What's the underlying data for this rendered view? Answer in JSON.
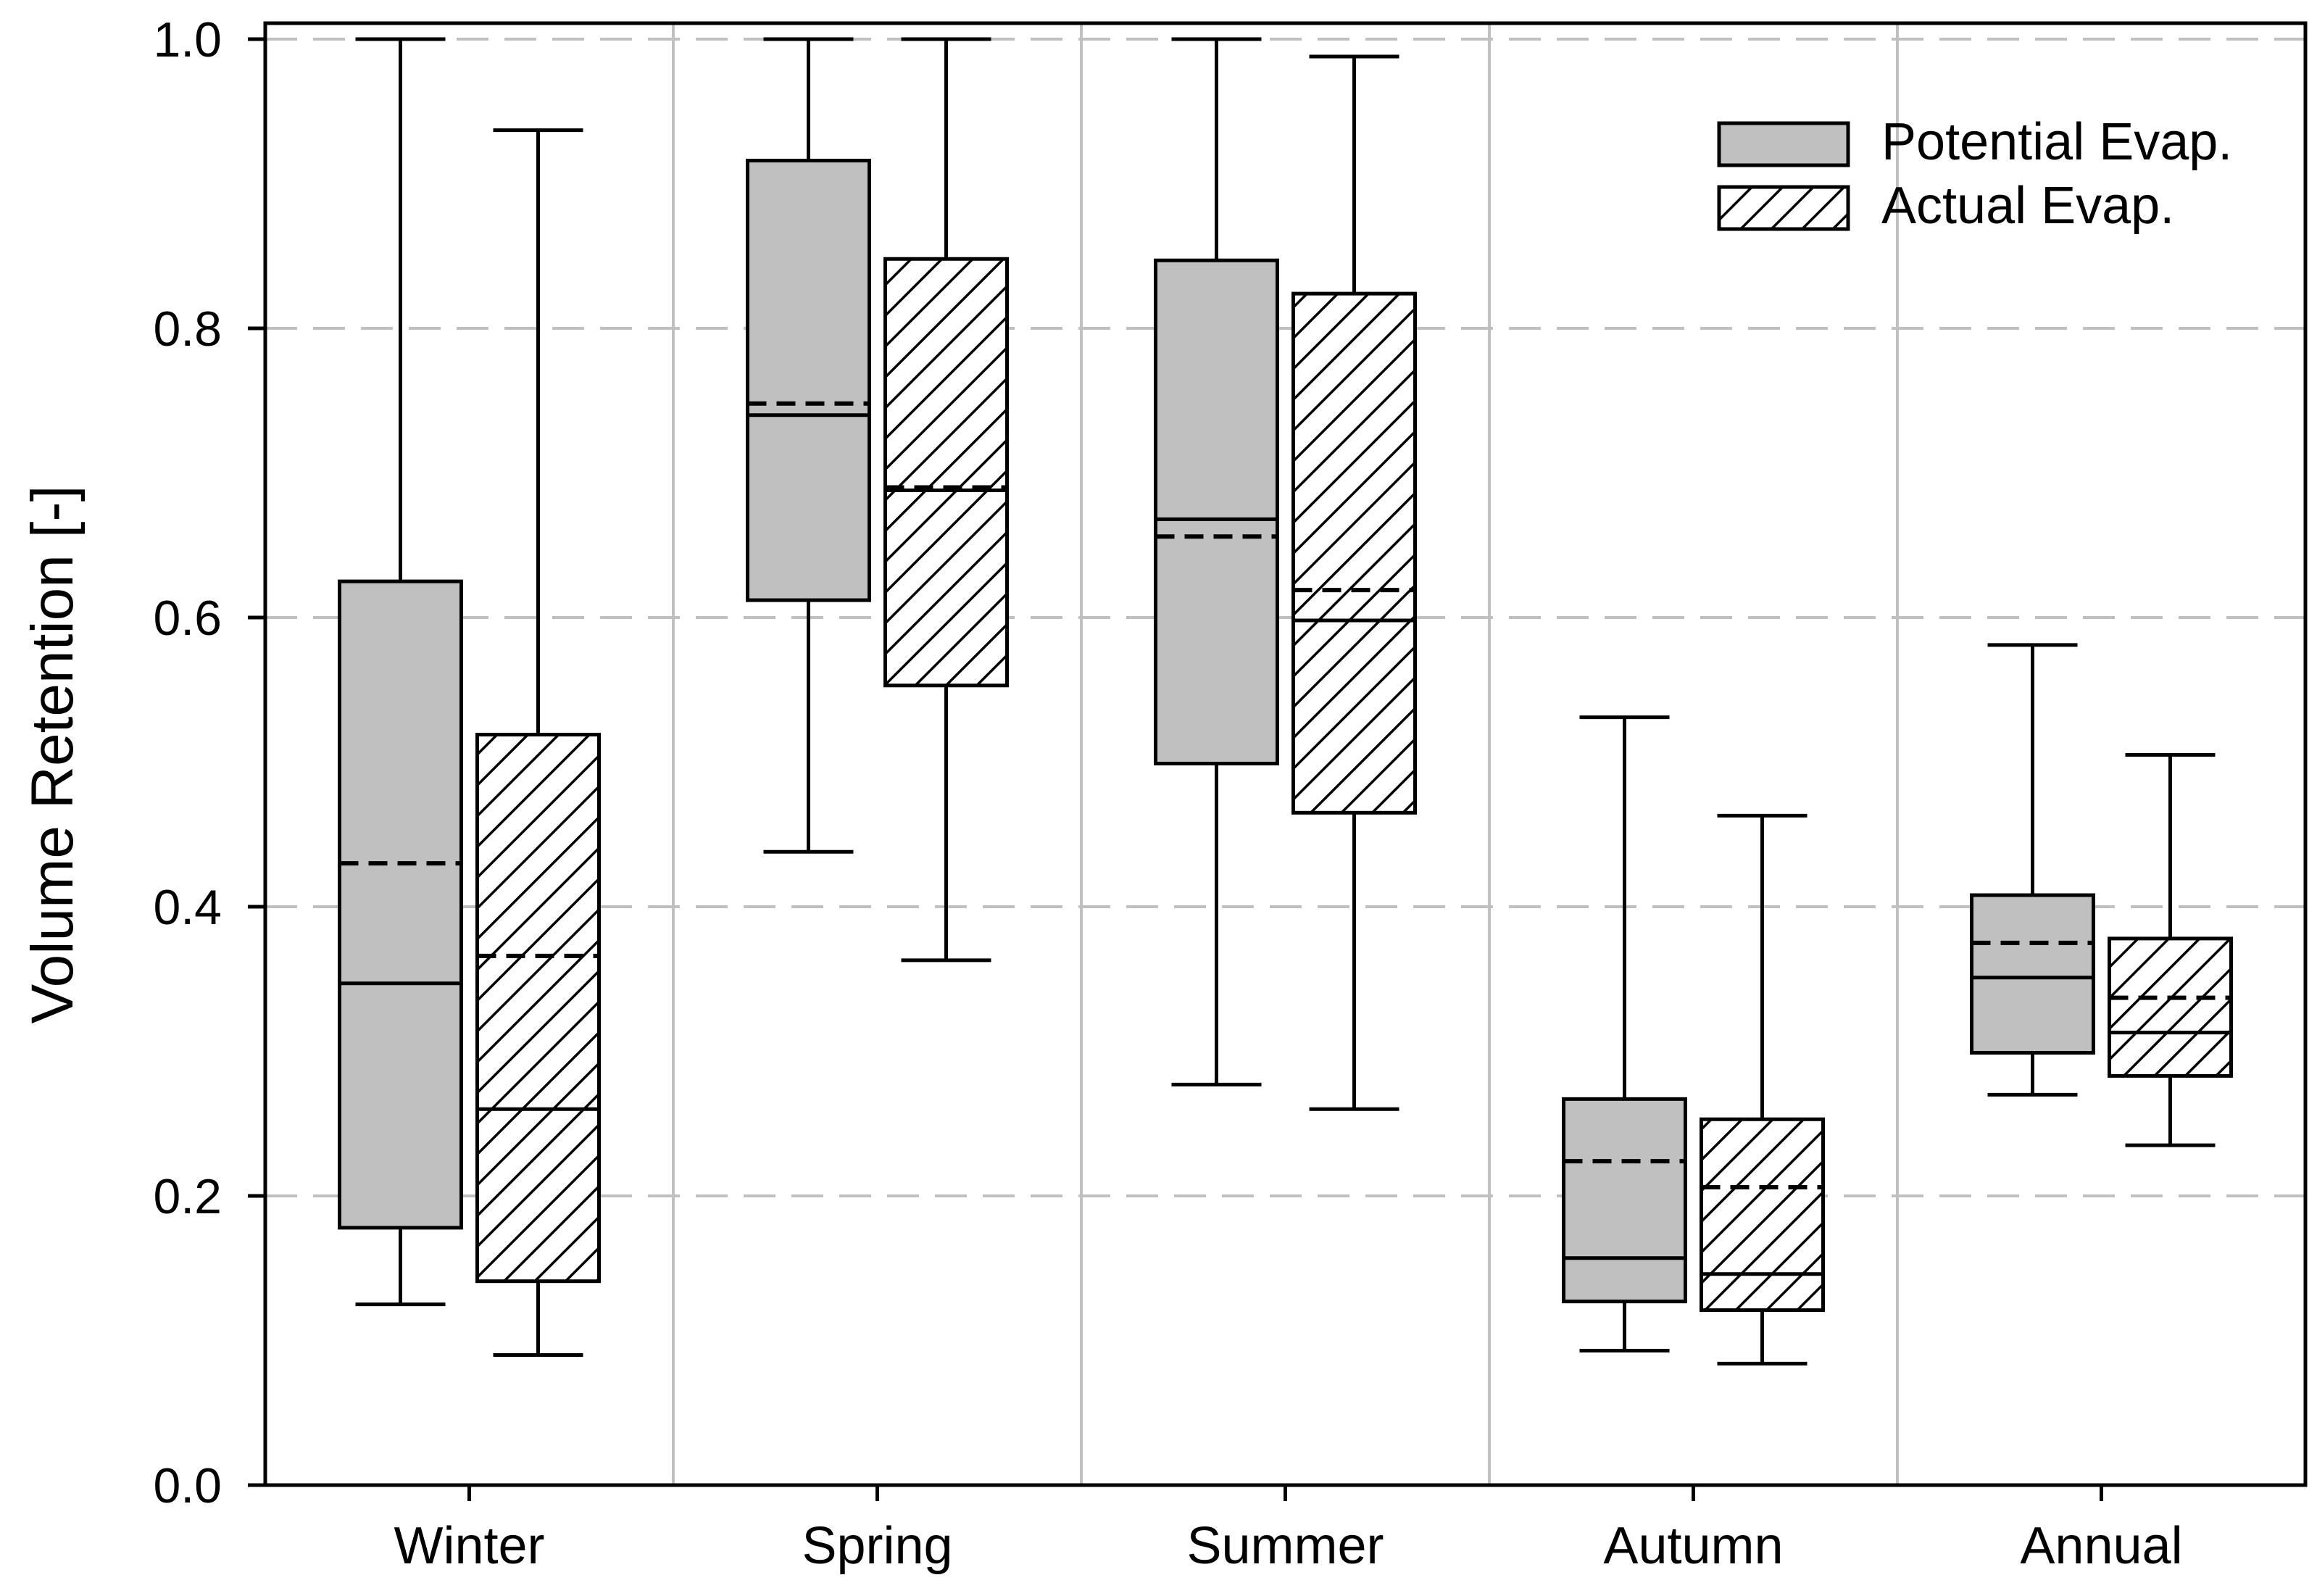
{
  "chart_data": {
    "type": "box",
    "ylabel": "Volume Retention [-]",
    "xlabel": "",
    "ylim": [
      0.0,
      1.0
    ],
    "yticks": [
      "0.0",
      "0.2",
      "0.4",
      "0.6",
      "0.8",
      "1.0"
    ],
    "categories": [
      "Winter",
      "Spring",
      "Summer",
      "Autumn",
      "Annual"
    ],
    "grid": "dashed horizontal at major y ticks; solid vertical separators between categories",
    "legend_position": "top-right",
    "median_style": "solid line",
    "mean_style": "dashed line",
    "series": [
      {
        "name": "Potential Evap.",
        "fill": "#c0c0c0",
        "pattern": "solid",
        "stats": [
          {
            "min": 0.125,
            "q1": 0.178,
            "median": 0.347,
            "mean": 0.43,
            "q3": 0.625,
            "max": 1.0
          },
          {
            "min": 0.438,
            "q1": 0.612,
            "median": 0.74,
            "mean": 0.748,
            "q3": 0.916,
            "max": 1.0
          },
          {
            "min": 0.277,
            "q1": 0.499,
            "median": 0.668,
            "mean": 0.656,
            "q3": 0.847,
            "max": 1.0
          },
          {
            "min": 0.093,
            "q1": 0.127,
            "median": 0.157,
            "mean": 0.224,
            "q3": 0.267,
            "max": 0.531
          },
          {
            "min": 0.27,
            "q1": 0.299,
            "median": 0.351,
            "mean": 0.375,
            "q3": 0.408,
            "max": 0.581
          }
        ]
      },
      {
        "name": "Actual Evap.",
        "fill": "#ffffff",
        "pattern": "diagonal-hatch",
        "stats": [
          {
            "min": 0.09,
            "q1": 0.141,
            "median": 0.26,
            "mean": 0.366,
            "q3": 0.519,
            "max": 0.937
          },
          {
            "min": 0.363,
            "q1": 0.553,
            "median": 0.688,
            "mean": 0.69,
            "q3": 0.848,
            "max": 1.0
          },
          {
            "min": 0.26,
            "q1": 0.465,
            "median": 0.598,
            "mean": 0.619,
            "q3": 0.824,
            "max": 0.988
          },
          {
            "min": 0.084,
            "q1": 0.121,
            "median": 0.146,
            "mean": 0.206,
            "q3": 0.253,
            "max": 0.463
          },
          {
            "min": 0.235,
            "q1": 0.283,
            "median": 0.313,
            "mean": 0.337,
            "q3": 0.378,
            "max": 0.505
          }
        ]
      }
    ]
  }
}
